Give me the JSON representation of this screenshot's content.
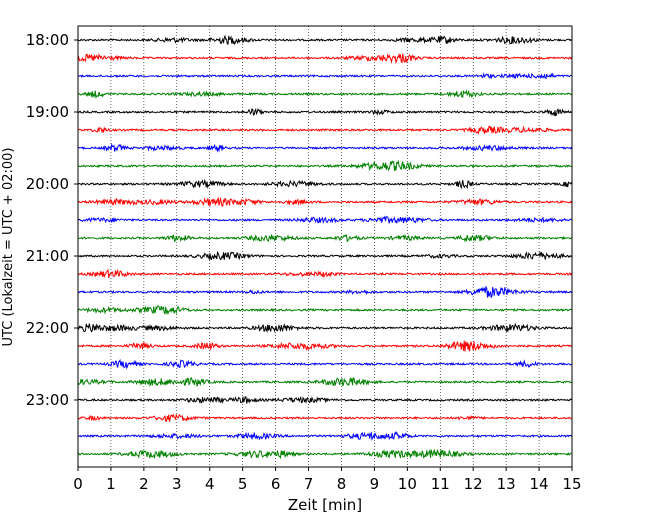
{
  "chart_data": {
    "type": "line",
    "title": "",
    "xlabel": "Zeit  [min]",
    "ylabel": "UTC (Lokalzeit = UTC + 02:00)",
    "xlim": [
      0,
      15
    ],
    "x_ticks": [
      "0",
      "1",
      "2",
      "3",
      "4",
      "5",
      "6",
      "7",
      "8",
      "9",
      "10",
      "11",
      "12",
      "13",
      "14",
      "15"
    ],
    "y_ticks": [
      "18:00",
      "19:00",
      "20:00",
      "21:00",
      "22:00",
      "23:00"
    ],
    "grid": "vertical dotted at each minute",
    "trace_interval_min": 15,
    "trace_count": 24,
    "first_trace": "18:00",
    "trace_colors": [
      "#000000",
      "#ff0000",
      "#0000ff",
      "#008000"
    ]
  }
}
